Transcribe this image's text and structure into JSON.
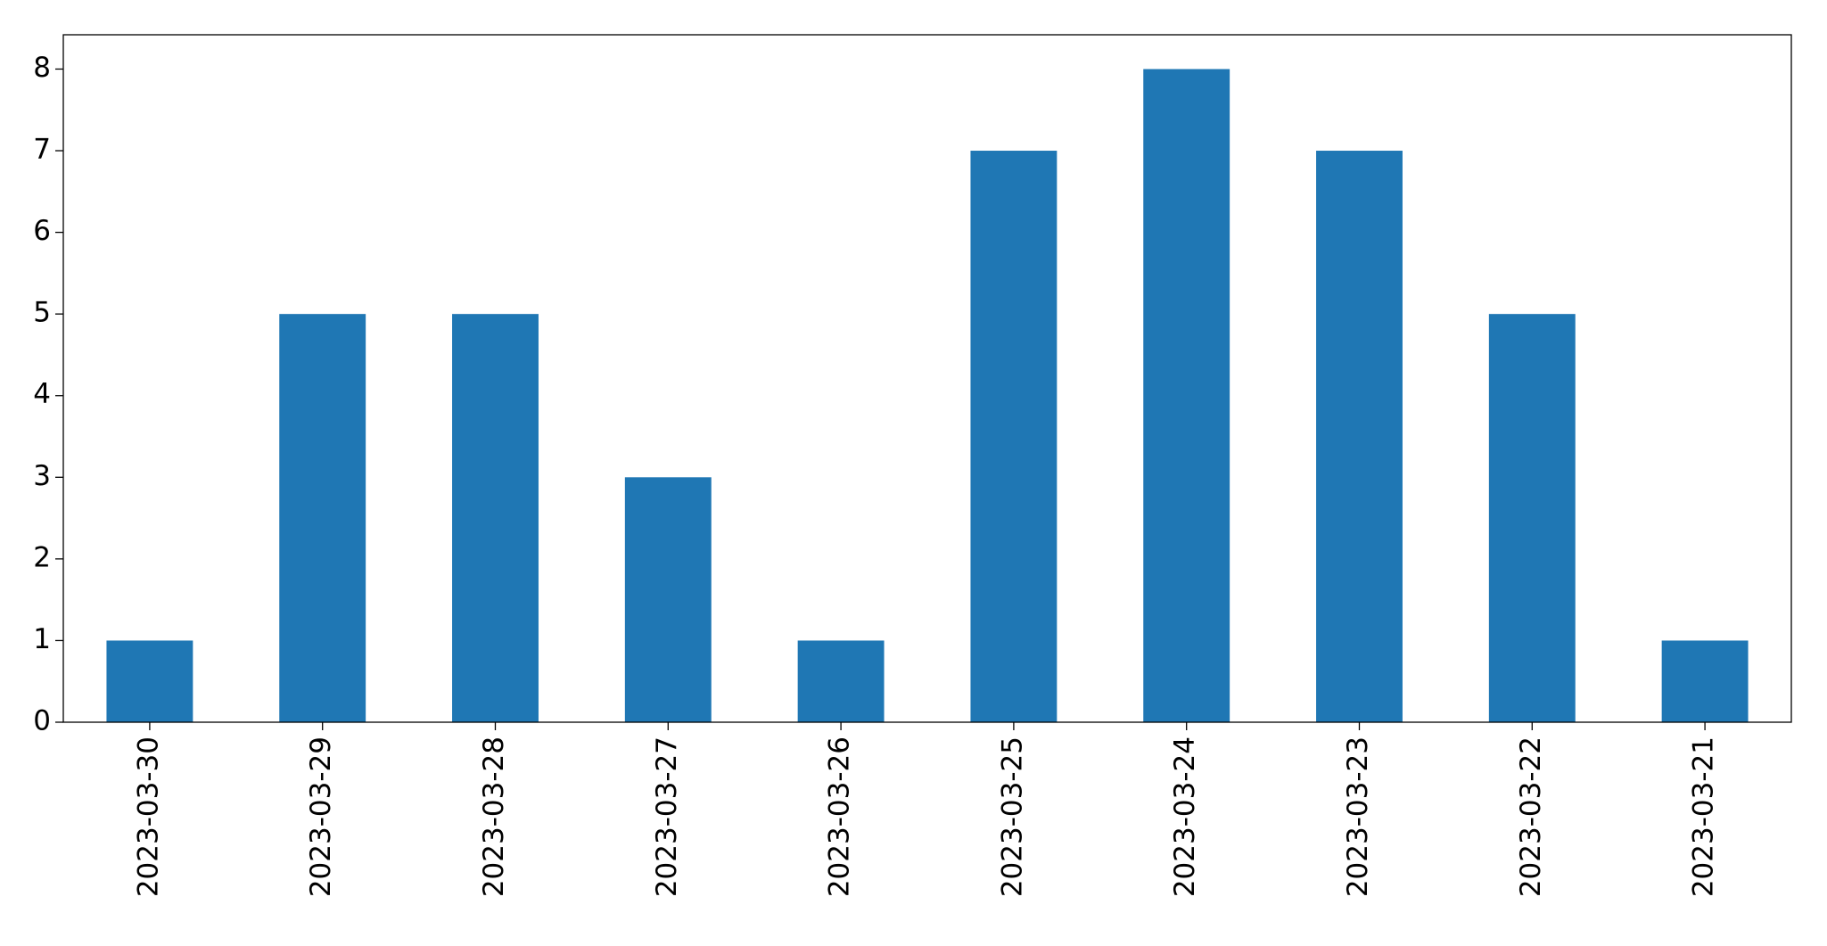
{
  "chart_data": {
    "type": "bar",
    "categories": [
      "2023-03-30",
      "2023-03-29",
      "2023-03-28",
      "2023-03-27",
      "2023-03-26",
      "2023-03-25",
      "2023-03-24",
      "2023-03-23",
      "2023-03-22",
      "2023-03-21"
    ],
    "values": [
      1,
      5,
      5,
      3,
      1,
      7,
      8,
      7,
      5,
      1
    ],
    "color": "#1f77b4",
    "ylim": [
      0,
      8.42
    ],
    "yticks": [
      0,
      1,
      2,
      3,
      4,
      5,
      6,
      7,
      8
    ],
    "grid": false
  }
}
